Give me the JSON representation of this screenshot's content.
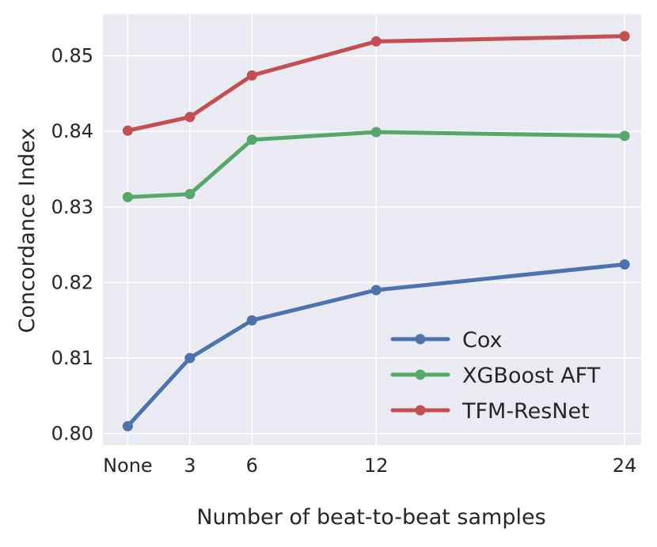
{
  "chart_data": {
    "type": "line",
    "title": "",
    "xlabel": "Number of beat-to-beat samples",
    "ylabel": "Concordance Index",
    "x": [
      0,
      3,
      6,
      12,
      24
    ],
    "xtick_labels": [
      "None",
      "3",
      "6",
      "12",
      "24"
    ],
    "xlim": [
      -1.2,
      24.8
    ],
    "ylim": [
      0.7985,
      0.8555
    ],
    "yticks": [
      0.8,
      0.81,
      0.82,
      0.83,
      0.84,
      0.85
    ],
    "ytick_labels": [
      "0.80",
      "0.81",
      "0.82",
      "0.83",
      "0.84",
      "0.85"
    ],
    "grid": true,
    "legend_position": "lower-right",
    "series": [
      {
        "name": "Cox",
        "color": "#4c72b0",
        "values": [
          0.801,
          0.81,
          0.815,
          0.819,
          0.8224
        ]
      },
      {
        "name": "XGBoost AFT",
        "color": "#55a868",
        "values": [
          0.8313,
          0.8317,
          0.8389,
          0.8399,
          0.8394
        ]
      },
      {
        "name": "TFM-ResNet",
        "color": "#c44e52",
        "values": [
          0.8401,
          0.8419,
          0.8474,
          0.8519,
          0.8526
        ]
      }
    ],
    "background_color": "#eaeaf2",
    "grid_color": "#ffffff"
  }
}
